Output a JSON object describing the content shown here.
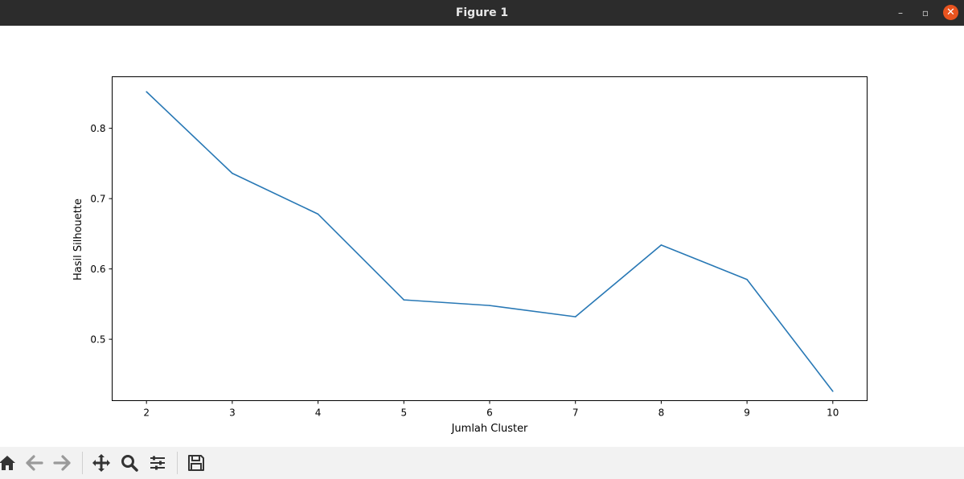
{
  "window": {
    "title": "Figure 1",
    "minimize_glyph": "–",
    "maximize_glyph": "▫",
    "close_glyph": "✕"
  },
  "toolbar": {
    "buttons": [
      "home-icon",
      "back-arrow-icon",
      "forward-arrow-icon",
      "pan-icon",
      "zoom-icon",
      "configure-subplots-icon",
      "save-icon"
    ]
  },
  "colors": {
    "line": "#2878b5",
    "titlebar": "#2c2c2c",
    "close": "#e9541f",
    "toolbar": "#f2f2f2"
  },
  "chart_data": {
    "type": "line",
    "title": "",
    "xlabel": "Jumlah Cluster",
    "ylabel": "Hasil Silhouette",
    "x": [
      2,
      3,
      4,
      5,
      6,
      7,
      8,
      9,
      10
    ],
    "series": [
      {
        "values": [
          0.852,
          0.736,
          0.678,
          0.556,
          0.548,
          0.532,
          0.634,
          0.585,
          0.426
        ]
      }
    ],
    "xlim": [
      1.6,
      10.4
    ],
    "ylim": [
      0.4127,
      0.8733
    ],
    "xticks": [
      "2",
      "3",
      "4",
      "5",
      "6",
      "7",
      "8",
      "9",
      "10"
    ],
    "yticks": [
      "0.5",
      "0.6",
      "0.7",
      "0.8"
    ],
    "ytick_values": [
      0.5,
      0.6,
      0.7,
      0.8
    ],
    "grid": false,
    "legend": "none"
  }
}
